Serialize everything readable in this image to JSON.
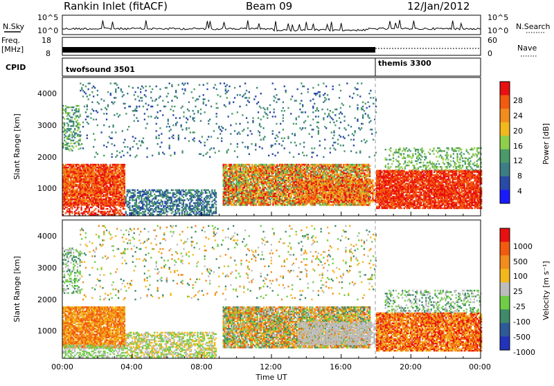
{
  "header": {
    "station": "Rankin Inlet (fitACF)",
    "beam": "Beam 09",
    "date": "12/Jan/2012"
  },
  "side_labels": {
    "nsky": "N.Sky",
    "nsearch": "N.Search",
    "freq_line1": "Freq.",
    "freq_line2": "[MHz]",
    "nave": "Nave",
    "cpid": "CPID"
  },
  "chart_data": [
    {
      "type": "line",
      "name": "noise-panel",
      "ylabel_left": "N.Sky",
      "ylabel_right": "N.Search",
      "left_ticks": [
        "10^5",
        "10^0"
      ],
      "right_ticks": [
        "10^5",
        "10^0"
      ],
      "note": "N.Sky noise level fluctuating near baseline with spikes"
    },
    {
      "type": "line",
      "name": "frequency-panel",
      "ylabel_left": "Freq. [MHz]",
      "ylabel_right": "Nave",
      "left_ticks": [
        18,
        8
      ],
      "right_ticks": [
        60,
        0
      ],
      "freq_mhz_before_18ut": 10.5,
      "series": [
        {
          "name": "Freq.",
          "x": [
            "00:00",
            "18:00"
          ],
          "y": [
            10.5,
            10.5
          ]
        }
      ]
    },
    {
      "type": "table",
      "name": "cpid-panel",
      "segments": [
        {
          "label": "twofsound 3501",
          "start": "00:00",
          "end": "18:00"
        },
        {
          "label": "themis 3300",
          "start": "18:00",
          "end": "24:00"
        }
      ]
    },
    {
      "type": "heatmap",
      "name": "power-panel",
      "ylabel": "Slant Range [km]",
      "yticks": [
        1000,
        2000,
        3000,
        4000
      ],
      "ylim": [
        180,
        4500
      ],
      "colorbar_label": "Power [dB]",
      "colorbar_ticks": [
        4,
        8,
        12,
        16,
        20,
        24,
        28
      ]
    },
    {
      "type": "heatmap",
      "name": "velocity-panel",
      "ylabel": "Slant Range [km]",
      "yticks": [
        1000,
        2000,
        3000,
        4000
      ],
      "ylim": [
        180,
        4500
      ],
      "colorbar_label": "Velocity [m s⁻¹]",
      "colorbar_ticks": [
        1000,
        500,
        100,
        25,
        -25,
        -100,
        -500,
        -1000
      ]
    }
  ],
  "xaxis": {
    "label": "Time UT",
    "ticks": [
      "00:00",
      "04:00",
      "08:00",
      "12:00",
      "16:00",
      "20:00",
      "00:00"
    ]
  },
  "colors": {
    "power_scale": [
      "#1a1aff",
      "#2a4aa8",
      "#3c7d86",
      "#4a9a6a",
      "#8fcf4a",
      "#f2b81c",
      "#f28c1c",
      "#f25a10",
      "#e81010"
    ],
    "velocity_scale": [
      "#2233bb",
      "#2e5a9a",
      "#3f8a6a",
      "#6fce44",
      "#bdbdbd",
      "#f2b81c",
      "#f28c1c",
      "#f25a10",
      "#e81010"
    ],
    "cpid_divider": "#000000"
  }
}
